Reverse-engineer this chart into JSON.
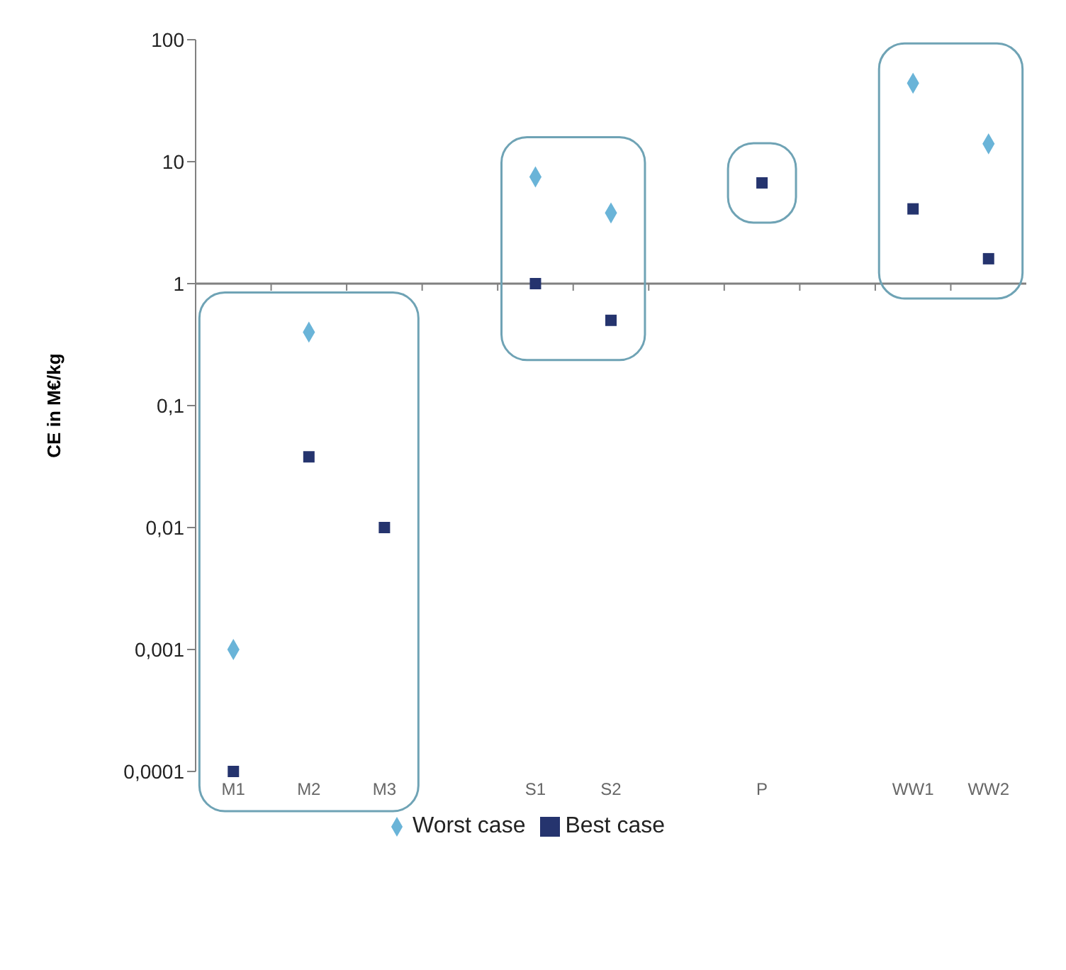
{
  "chart_data": {
    "type": "scatter",
    "ylabel": "CE in M€/kg",
    "log": "y",
    "legend": "bottom",
    "categories": [
      "M1",
      "M2",
      "M3",
      null,
      "S1",
      "S2",
      null,
      "P",
      null,
      "WW1",
      "WW2"
    ],
    "ylim": [
      0.0001,
      100
    ],
    "yticks": [
      {
        "value": 0.0001,
        "label": "0,0001"
      },
      {
        "value": 0.001,
        "label": "0,001"
      },
      {
        "value": 0.01,
        "label": "0,01"
      },
      {
        "value": 0.1,
        "label": "0,1"
      },
      1,
      10,
      100
    ],
    "ref_lines": [
      {
        "axis": "y",
        "value": 1,
        "color": "#808080"
      }
    ],
    "series": [
      {
        "name": "Worst case",
        "color": "#6ab4d8",
        "marker": "diamond",
        "values": [
          0.001,
          0.4,
          null,
          null,
          7.5,
          3.8,
          null,
          null,
          null,
          44,
          14
        ]
      },
      {
        "name": "Best case",
        "color": "#25346e",
        "marker": "square",
        "values": [
          0.0001,
          0.038,
          0.01,
          null,
          1,
          0.5,
          null,
          6.7,
          null,
          4.1,
          1.6
        ]
      }
    ]
  }
}
